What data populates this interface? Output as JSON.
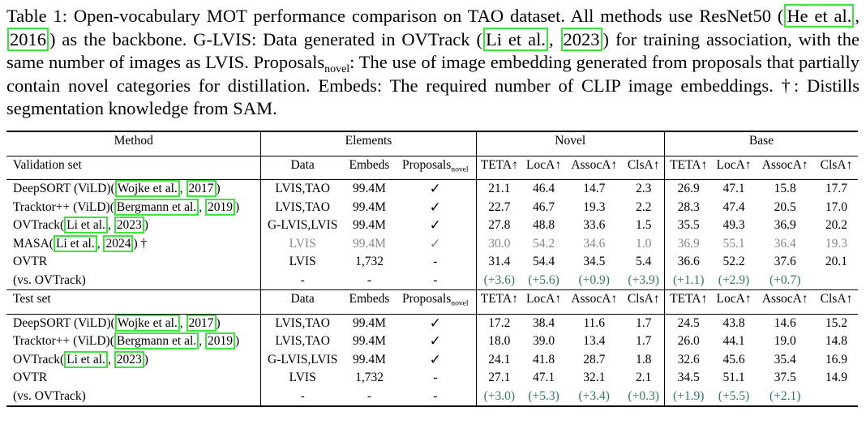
{
  "caption": {
    "p1": "Table 1:  Open-vocabulary MOT performance comparison on TAO dataset.  All methods use ResNet50 (",
    "c1a": "He et al.",
    "sep1": ", ",
    "c1b": "2016",
    "p2": ") as the backbone.  G-LVIS: Data generated in OVTrack (",
    "c2a": "Li et al.",
    "sep2": ", ",
    "c2b": "2023",
    "p3": ") for training association, with the same number of images as LVIS. Proposals",
    "sub": "novel",
    "p4": ": The use of image embedding generated from proposals that partially contain novel categories for distillation. Embeds: The required number of CLIP image embeddings. †: Distills segmentation knowledge from SAM."
  },
  "header": {
    "method": "Method",
    "elements": "Elements",
    "novel": "Novel",
    "base": "Base"
  },
  "subheader": {
    "data": "Data",
    "embeds": "Embeds",
    "proposals": "Proposals",
    "proposals_sub": "novel",
    "teta": "TETA↑",
    "loca": "LocA↑",
    "assoca": "AssocA↑",
    "clsa": "ClsA↑"
  },
  "validation": {
    "label": "Validation set",
    "rows": {
      "deepsort": {
        "name": "DeepSORT (ViLD)(",
        "ca": "Wojke et al.",
        "sep": ", ",
        "cb": "2017",
        "end": ")",
        "data": "LVIS,TAO",
        "embeds": "99.4M",
        "prop": "✓",
        "v": [
          "21.1",
          "46.4",
          "14.7",
          "2.3",
          "26.9",
          "47.1",
          "15.8",
          "17.7"
        ]
      },
      "tracktor": {
        "name": "Tracktor++ (ViLD)(",
        "ca": "Bergmann et al.",
        "sep": ", ",
        "cb": "2019",
        "end": ")",
        "data": "LVIS,TAO",
        "embeds": "99.4M",
        "prop": "✓",
        "v": [
          "22.7",
          "46.7",
          "19.3",
          "2.2",
          "28.3",
          "47.4",
          "20.5",
          "17.0"
        ]
      },
      "ovtrack": {
        "name": "OVTrack(",
        "ca": "Li et al.",
        "sep": ", ",
        "cb": "2023",
        "end": ")",
        "data": "G-LVIS,LVIS",
        "embeds": "99.4M",
        "prop": "✓",
        "v": [
          "27.8",
          "48.8",
          "33.6",
          "1.5",
          "35.5",
          "49.3",
          "36.9",
          "20.2"
        ]
      },
      "masa": {
        "name": "MASA(",
        "ca": "Li et al.",
        "sep": ", ",
        "cb": "2024",
        "end": ") †",
        "data": "LVIS",
        "embeds": "99.4M",
        "prop": "✓",
        "v": [
          "30.0",
          "54.2",
          "34.6",
          "1.0",
          "36.9",
          "55.1",
          "36.4",
          "19.3"
        ]
      },
      "ovtr": {
        "name": "OVTR",
        "data": "LVIS",
        "embeds": "1,732",
        "prop": "-",
        "v": [
          "31.4",
          "54.4",
          "34.5",
          "5.4",
          "36.6",
          "52.2",
          "37.6",
          "20.1"
        ]
      },
      "vs": {
        "name": "(vs. OVTrack)",
        "data": "-",
        "embeds": "-",
        "prop": "-",
        "v": [
          "(+3.6)",
          "(+5.6)",
          "(+0.9)",
          "(+3.9)",
          "(+1.1)",
          "(+2.9)",
          "(+0.7)",
          ""
        ]
      }
    }
  },
  "test": {
    "label": "Test set",
    "rows": {
      "deepsort": {
        "name": "DeepSORT (ViLD)(",
        "ca": "Wojke et al.",
        "sep": ", ",
        "cb": "2017",
        "end": ")",
        "data": "LVIS,TAO",
        "embeds": "99.4M",
        "prop": "✓",
        "v": [
          "17.2",
          "38.4",
          "11.6",
          "1.7",
          "24.5",
          "43.8",
          "14.6",
          "15.2"
        ]
      },
      "tracktor": {
        "name": "Tracktor++ (ViLD)(",
        "ca": "Bergmann et al.",
        "sep": ", ",
        "cb": "2019",
        "end": ")",
        "data": "LVIS,TAO",
        "embeds": "99.4M",
        "prop": "✓",
        "v": [
          "18.0",
          "39.0",
          "13.4",
          "1.7",
          "26.0",
          "44.1",
          "19.0",
          "14.8"
        ]
      },
      "ovtrack": {
        "name": "OVTrack(",
        "ca": "Li et al.",
        "sep": ", ",
        "cb": "2023",
        "end": ")",
        "data": "G-LVIS,LVIS",
        "embeds": "99.4M",
        "prop": "✓",
        "v": [
          "24.1",
          "41.8",
          "28.7",
          "1.8",
          "32.6",
          "45.6",
          "35.4",
          "16.9"
        ]
      },
      "ovtr": {
        "name": "OVTR",
        "data": "LVIS",
        "embeds": "1,732",
        "prop": "-",
        "v": [
          "27.1",
          "47.1",
          "32.1",
          "2.1",
          "34.5",
          "51.1",
          "37.5",
          "14.9"
        ]
      },
      "vs": {
        "name": "(vs. OVTrack)",
        "data": "-",
        "embeds": "-",
        "prop": "-",
        "v": [
          "(+3.0)",
          "(+5.3)",
          "(+3.4)",
          "(+0.3)",
          "(+1.9)",
          "(+5.5)",
          "(+2.1)",
          ""
        ]
      }
    }
  },
  "colors": {
    "citation_box": "#39e639",
    "improvement_text": "#2e7d5b",
    "masa_row_text": "#888888"
  }
}
